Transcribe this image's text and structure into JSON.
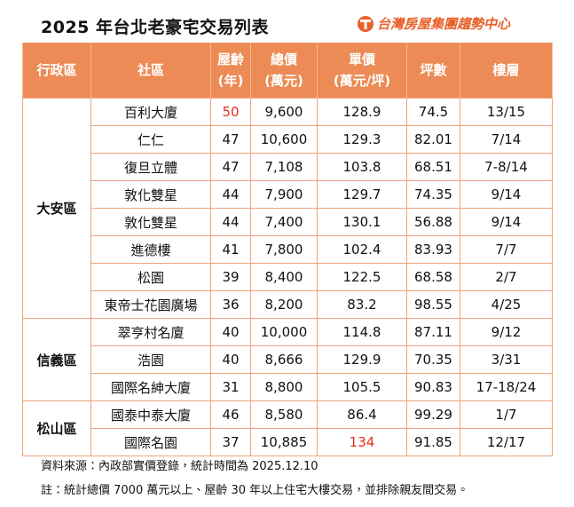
{
  "header": {
    "title": "2025 年台北老豪宅交易列表",
    "brand": "台灣房屋集團趨勢中心"
  },
  "table": {
    "columns": [
      [
        "行政區"
      ],
      [
        "社區"
      ],
      [
        "屋齡",
        "(年)"
      ],
      [
        "總價",
        "(萬元)"
      ],
      [
        "單價",
        "(萬元/坪)"
      ],
      [
        "坪數"
      ],
      [
        "樓層"
      ]
    ],
    "groups": [
      {
        "district": "大安區",
        "rows": [
          [
            "百利大廈",
            "50",
            "9,600",
            "128.9",
            "74.5",
            "13/15"
          ],
          [
            "仁仁",
            "47",
            "10,600",
            "129.3",
            "82.01",
            "7/14"
          ],
          [
            "復旦立體",
            "47",
            "7,108",
            "103.8",
            "68.51",
            "7-8/14"
          ],
          [
            "敦化雙星",
            "44",
            "7,900",
            "129.7",
            "74.35",
            "9/14"
          ],
          [
            "敦化雙星",
            "44",
            "7,400",
            "130.1",
            "56.88",
            "9/14"
          ],
          [
            "進德樓",
            "41",
            "7,800",
            "102.4",
            "83.93",
            "7/7"
          ],
          [
            "松園",
            "39",
            "8,400",
            "122.5",
            "68.58",
            "2/7"
          ],
          [
            "東帝士花園廣場",
            "36",
            "8,200",
            "83.2",
            "98.55",
            "4/25"
          ]
        ]
      },
      {
        "district": "信義區",
        "rows": [
          [
            "翠亨村名廈",
            "40",
            "10,000",
            "114.8",
            "87.11",
            "9/12"
          ],
          [
            "浩園",
            "40",
            "8,666",
            "129.9",
            "70.35",
            "3/31"
          ],
          [
            "國際名紳大廈",
            "31",
            "8,800",
            "105.5",
            "90.83",
            "17-18/24"
          ]
        ]
      },
      {
        "district": "松山區",
        "rows": [
          [
            "國泰中泰大廈",
            "46",
            "8,580",
            "86.4",
            "99.29",
            "1/7"
          ],
          [
            "國際名園",
            "37",
            "10,885",
            "134",
            "91.85",
            "12/17"
          ]
        ]
      }
    ]
  },
  "footnotes": [
    "資料來源：內政部實價登錄，統計時間為 2025.12.10",
    "註：統計總價 7000 萬元以上、屋齡 30 年以上住宅大樓交易，並排除親友間交易。"
  ]
}
